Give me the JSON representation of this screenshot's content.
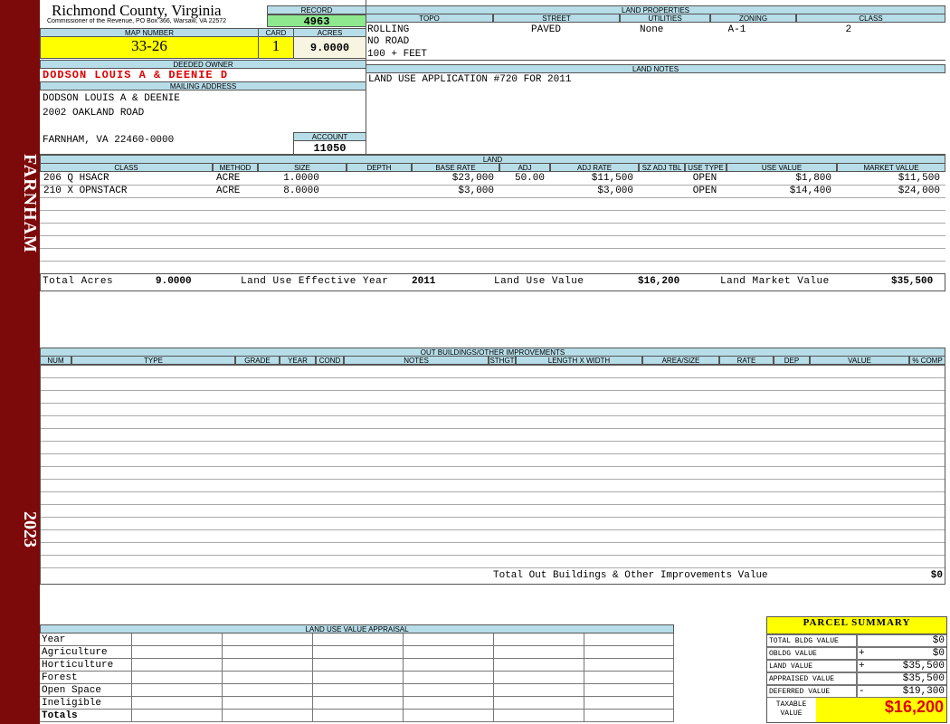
{
  "sidebar": {
    "town": "FARNHAM",
    "year": "2023"
  },
  "header": {
    "county": "Richmond County, Virginia",
    "address": "Commissioner of the Revenue, PO Box 366, Warsaw, VA 22572"
  },
  "record": {
    "label": "RECORD",
    "value": "4963"
  },
  "map_number": {
    "label": "MAP NUMBER",
    "value": "33-26"
  },
  "card": {
    "label": "CARD",
    "value": "1"
  },
  "acres": {
    "label": "ACRES",
    "value": "9.0000"
  },
  "deeded_owner": {
    "label": "DEEDED OWNER",
    "value": "DODSON LOUIS A & DEENIE D"
  },
  "mailing_address": {
    "label": "MAILING ADDRESS",
    "lines": [
      "DODSON LOUIS A & DEENIE",
      "2002 OAKLAND ROAD",
      "FARNHAM, VA 22460-0000"
    ]
  },
  "account": {
    "label": "ACCOUNT",
    "value": "11050"
  },
  "land_properties": {
    "title": "LAND PROPERTIES",
    "columns": [
      "TOPO",
      "STREET",
      "UTILITIES",
      "ZONING",
      "CLASS"
    ],
    "row": [
      "ROLLING",
      "PAVED",
      "None",
      "A-1",
      "2"
    ],
    "topo_more": [
      "NO ROAD",
      "100 + FEET"
    ]
  },
  "land_notes": {
    "title": "LAND NOTES",
    "text": "LAND USE APPLICATION #720 FOR 2011"
  },
  "land": {
    "title": "LAND",
    "columns": [
      "CLASS",
      "METHOD",
      "SIZE",
      "DEPTH",
      "BASE RATE",
      "ADJ",
      "ADJ RATE",
      "SZ ADJ TBL",
      "USE TYPE",
      "USE VALUE",
      "MARKET VALUE"
    ],
    "rows": [
      [
        "206 Q HSACR",
        "ACRE",
        "1.0000",
        null,
        "$23,000",
        "50.00",
        "$11,500",
        null,
        "OPEN",
        "$1,800",
        "$11,500"
      ],
      [
        "210 X OPNSTACR",
        "ACRE",
        "8.0000",
        null,
        "$3,000",
        null,
        "$3,000",
        null,
        "OPEN",
        "$14,400",
        "$24,000"
      ]
    ],
    "totals": [
      {
        "label": "Total Acres",
        "value": "9.0000"
      },
      {
        "label": "Land Use Effective Year",
        "value": "2011"
      },
      {
        "label": "Land Use Value",
        "value": "$16,200"
      },
      {
        "label": "Land Market Value",
        "value": "$35,500"
      }
    ]
  },
  "out_buildings": {
    "title": "OUT BUILDINGS/OTHER IMPROVEMENTS",
    "columns": [
      "NUM",
      "TYPE",
      "GRADE",
      "YEAR",
      "COND",
      "NOTES",
      "STHGT",
      "LENGTH X WIDTH",
      "AREA/SIZE",
      "RATE",
      "DEP",
      "VALUE",
      "% COMP"
    ],
    "total_label": "Total Out Buildings & Other Improvements Value",
    "total_value": "$0"
  },
  "land_use": {
    "title": "LAND USE VALUE APPRAISAL",
    "rows": [
      "Year",
      "Agriculture",
      "Horticulture",
      "Forest",
      "Open Space",
      "Ineligible",
      "Totals"
    ]
  },
  "parcel_summary": {
    "title": "PARCEL SUMMARY",
    "rows": [
      {
        "label": "TOTAL BLDG VALUE",
        "value": "$0"
      },
      {
        "label": "OBLDG VALUE",
        "sign": "+",
        "value": "$0"
      },
      {
        "label": "LAND VALUE",
        "sign": "+",
        "value": "$35,500"
      },
      {
        "label": "APPRAISED VALUE",
        "value": "$35,500"
      },
      {
        "label": "DEFERRED VALUE",
        "sign": "-",
        "value": "$19,300"
      }
    ],
    "taxable_label": "TAXABLE VALUE",
    "taxable_value": "$16,200"
  }
}
